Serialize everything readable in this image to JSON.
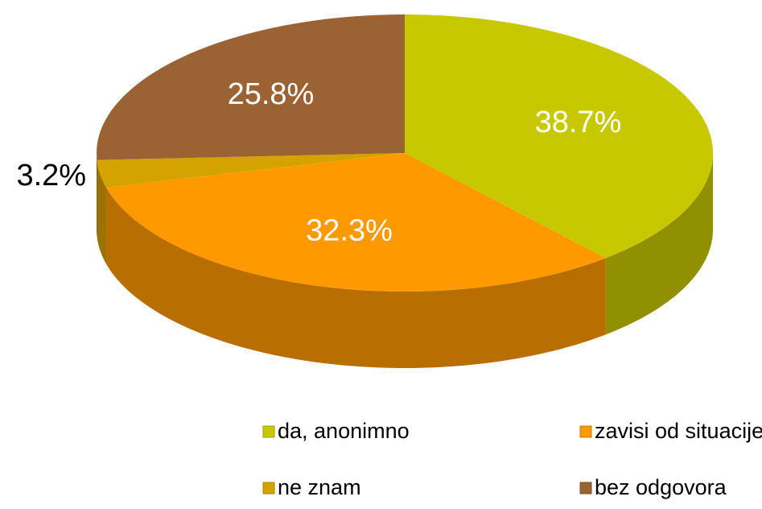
{
  "chart_data": {
    "type": "pie",
    "categories": [
      "da, anonimno",
      "zavisi od situacije/ponekad",
      "ne znam",
      "bez odgovora"
    ],
    "values": [
      38.7,
      32.3,
      3.2,
      25.8
    ],
    "value_labels": [
      "38.7%",
      "32.3%",
      "3.2%",
      "25.8%"
    ],
    "colors": [
      "#c8c800",
      "#ff9900",
      "#d4a300",
      "#9b6334"
    ],
    "legend": "bottom"
  }
}
